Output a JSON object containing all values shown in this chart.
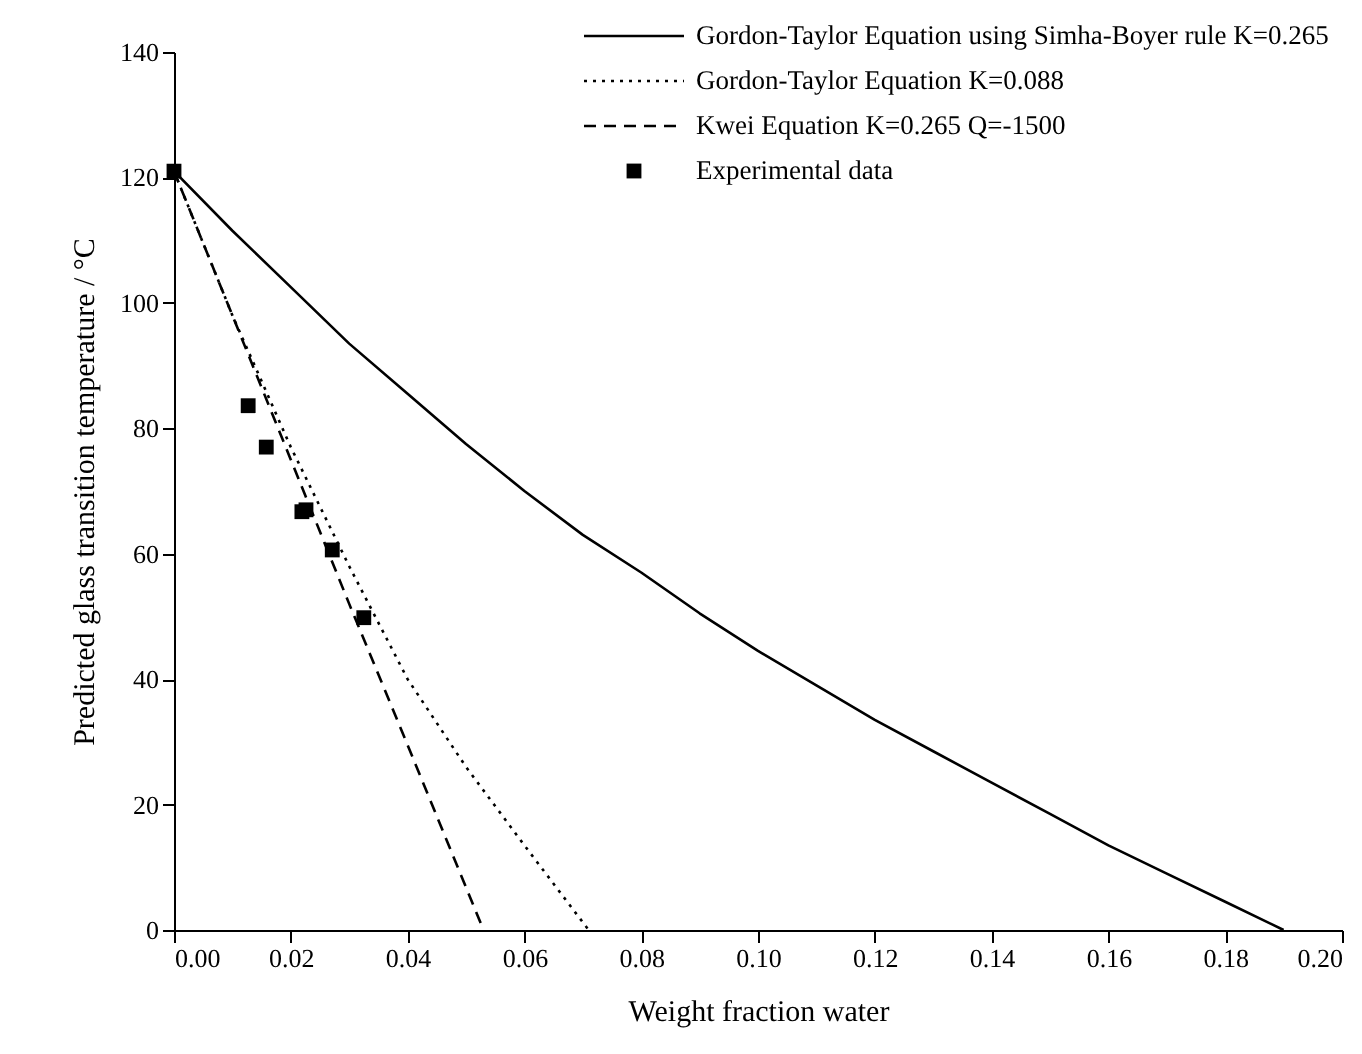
{
  "chart_data": {
    "type": "line",
    "xlabel": "Weight fraction water",
    "ylabel": "Predicted glass transition temperature / °C",
    "xlim": [
      0,
      0.2
    ],
    "ylim": [
      0,
      140
    ],
    "xticks": [
      {
        "value": 0,
        "label": "0.00"
      },
      {
        "value": 0.02,
        "label": "0.02"
      },
      {
        "value": 0.04,
        "label": "0.04"
      },
      {
        "value": 0.06,
        "label": "0.06"
      },
      {
        "value": 0.08,
        "label": "0.08"
      },
      {
        "value": 0.1,
        "label": "0.10"
      },
      {
        "value": 0.12,
        "label": "0.12"
      },
      {
        "value": 0.14,
        "label": "0.14"
      },
      {
        "value": 0.16,
        "label": "0.16"
      },
      {
        "value": 0.18,
        "label": "0.18"
      },
      {
        "value": 0.2,
        "label": "0.20"
      }
    ],
    "yticks": [
      0,
      20,
      40,
      60,
      80,
      100,
      120,
      140
    ],
    "grid": false,
    "legend": "top right",
    "series": [
      {
        "name": "Gordon-Taylor Equation using Simha-Boyer rule K=0.265",
        "color": "#000000",
        "line_style": "solid",
        "x": [
          0,
          0.01,
          0.02,
          0.03,
          0.04,
          0.05,
          0.06,
          0.07,
          0.08,
          0.09,
          0.1,
          0.11,
          0.12,
          0.13,
          0.14,
          0.15,
          0.16,
          0.17,
          0.18,
          0.19
        ],
        "values": [
          121,
          111.5,
          102.5,
          93.5,
          85.5,
          77.5,
          70,
          63,
          57,
          50.5,
          44.5,
          39,
          33.5,
          28.5,
          23.5,
          18.5,
          13.5,
          9,
          4.5,
          0
        ]
      },
      {
        "name": "Gordon-Taylor Equation K=0.088",
        "color": "#000000",
        "line_style": "dotted",
        "x": [
          0,
          0.01,
          0.02,
          0.03,
          0.04,
          0.05,
          0.06,
          0.071
        ],
        "values": [
          121,
          98,
          77,
          58,
          40,
          26,
          13.5,
          0
        ]
      },
      {
        "name": "Kwei Equation K=0.265 Q=-1500",
        "color": "#000000",
        "line_style": "dashed",
        "x": [
          0,
          0.01,
          0.02,
          0.03,
          0.04,
          0.053
        ],
        "values": [
          121,
          98,
          75,
          52,
          29.5,
          0
        ]
      },
      {
        "name": "Experimental data",
        "color": "#000000",
        "type": "scatter",
        "marker": "square",
        "x": [
          0,
          0.0127,
          0.0158,
          0.0219,
          0.0226,
          0.0271,
          0.0325
        ],
        "values": [
          121,
          83.6,
          77,
          66.7,
          67,
          60.6,
          49.8
        ]
      }
    ]
  }
}
